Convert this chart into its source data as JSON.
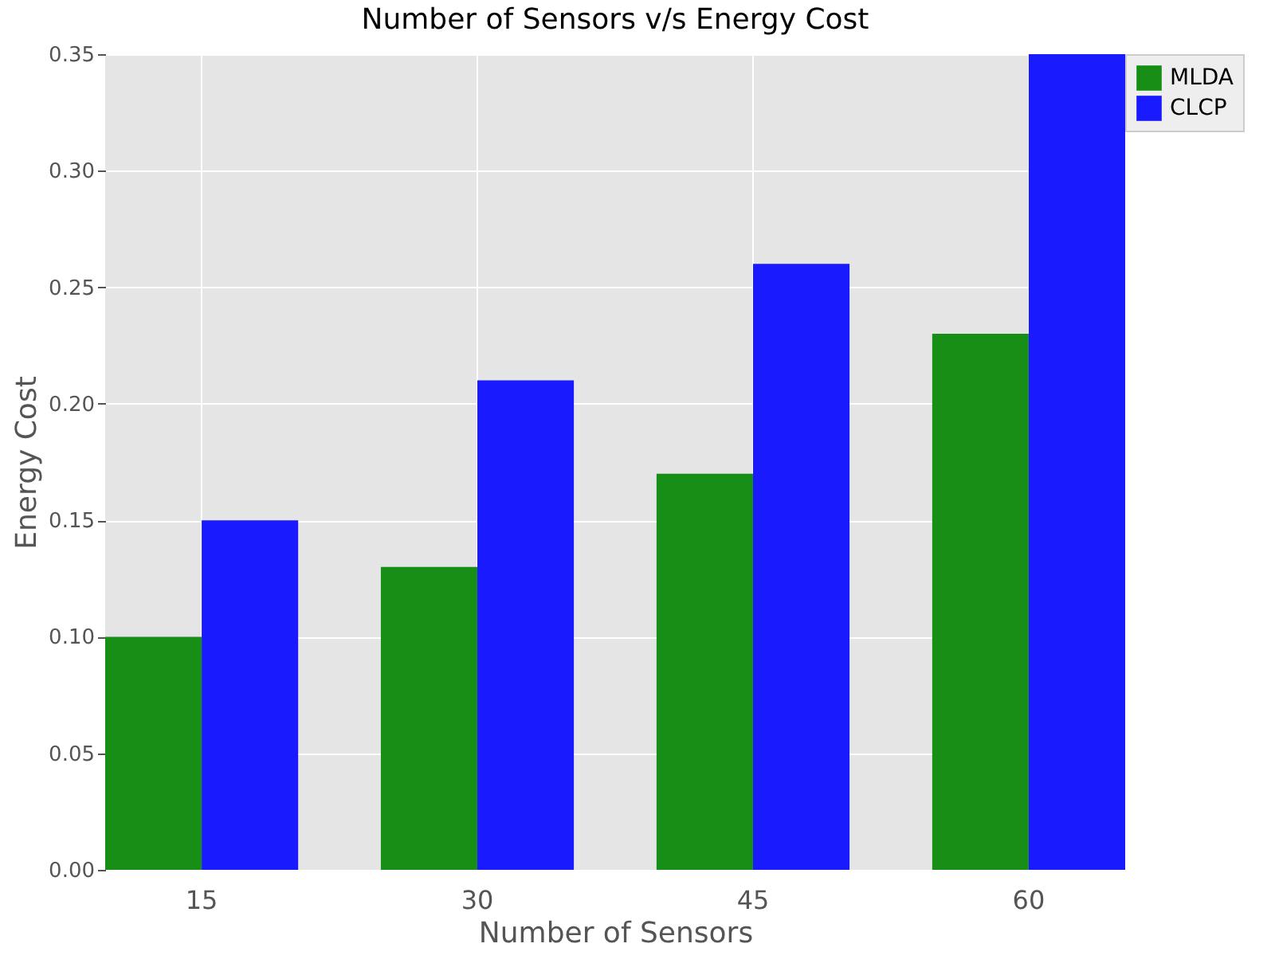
{
  "chart_data": {
    "type": "bar",
    "title": "Number of Sensors v/s Energy Cost",
    "xlabel": "Number of Sensors",
    "ylabel": "Energy Cost",
    "categories": [
      "15",
      "30",
      "45",
      "60"
    ],
    "series": [
      {
        "name": "MLDA",
        "color": "#178f17",
        "values": [
          0.1,
          0.13,
          0.17,
          0.23
        ]
      },
      {
        "name": "CLCP",
        "color": "#1a1aff",
        "values": [
          0.15,
          0.21,
          0.26,
          0.35
        ]
      }
    ],
    "ylim": [
      0,
      0.35
    ],
    "yticks": [
      {
        "value": 0,
        "label": "0.00"
      },
      0.05,
      {
        "value": 0.1,
        "label": "0.10"
      },
      0.15,
      {
        "value": 0.2,
        "label": "0.20"
      },
      0.25,
      {
        "value": 0.3,
        "label": "0.30"
      },
      0.35
    ],
    "grid": true,
    "legend": "right"
  }
}
